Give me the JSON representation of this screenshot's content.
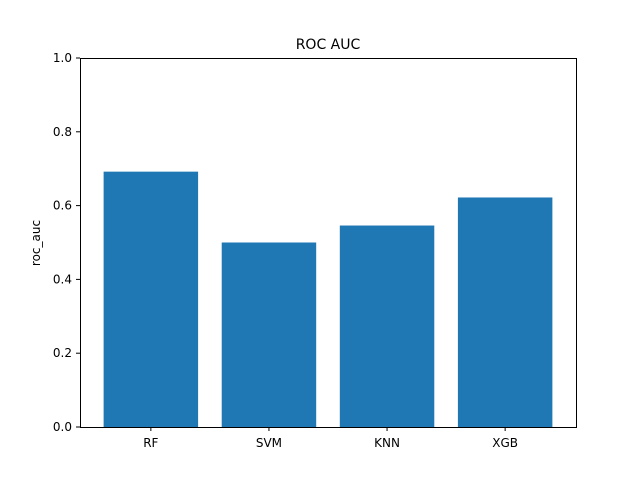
{
  "chart_data": {
    "type": "bar",
    "title": "ROC AUC",
    "xlabel": "",
    "ylabel": "roc_auc",
    "categories": [
      "RF",
      "SVM",
      "KNN",
      "XGB"
    ],
    "values": [
      0.692,
      0.5,
      0.546,
      0.622
    ],
    "ylim": [
      0.0,
      1.0
    ],
    "yticks": [
      0.0,
      0.2,
      0.4,
      0.6,
      0.8,
      1.0
    ],
    "ytick_labels": [
      "0.0",
      "0.2",
      "0.4",
      "0.6",
      "0.8",
      "1.0"
    ],
    "grid": false,
    "legend": "none",
    "bar_color": "#1f77b4"
  }
}
